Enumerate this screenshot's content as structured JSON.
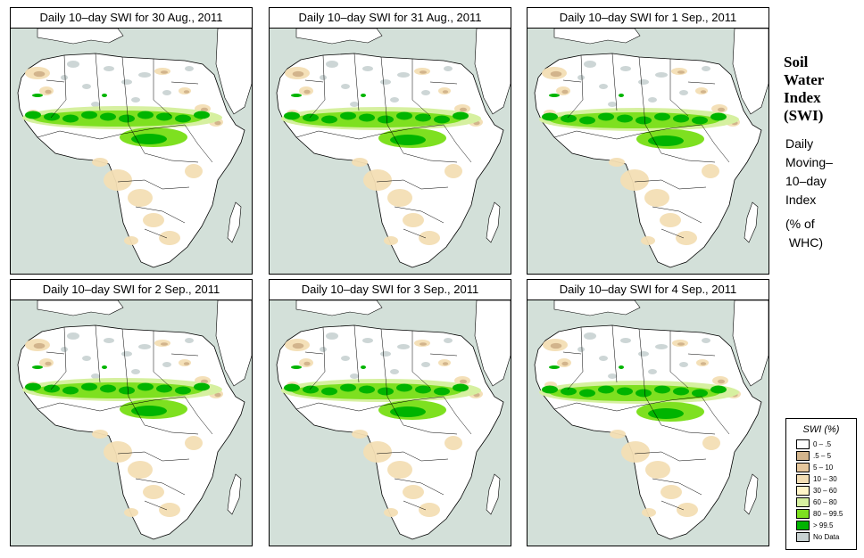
{
  "panels": [
    {
      "title": "Daily 10–day SWI for  30 Aug., 2011",
      "date": "30 Aug., 2011"
    },
    {
      "title": "Daily 10–day SWI for  31 Aug., 2011",
      "date": "31 Aug., 2011"
    },
    {
      "title": "Daily 10–day SWI for  1 Sep., 2011",
      "date": "1 Sep., 2011"
    },
    {
      "title": "Daily 10–day SWI for  2 Sep., 2011",
      "date": "2 Sep., 2011"
    },
    {
      "title": "Daily 10–day SWI for  3 Sep., 2011",
      "date": "3 Sep., 2011"
    },
    {
      "title": "Daily 10–day SWI for  4 Sep., 2011",
      "date": "4 Sep., 2011"
    }
  ],
  "side": {
    "title_lines": [
      "Soil",
      "Water",
      "Index",
      "(SWI)"
    ],
    "subtitle_lines": [
      "Daily",
      "Moving–",
      "10–day",
      "Index"
    ],
    "unit_lines": [
      "(% of",
      " WHC)"
    ]
  },
  "legend": {
    "title": "SWI (%)",
    "items": [
      {
        "label": "0 – .5",
        "color": "#ffffff"
      },
      {
        "label": ".5 – 5",
        "color": "#d2b48c"
      },
      {
        "label": "5 – 10",
        "color": "#e6c79c"
      },
      {
        "label": "10 – 30",
        "color": "#f3deb4"
      },
      {
        "label": "30 – 60",
        "color": "#fff5c8"
      },
      {
        "label": "60 – 80",
        "color": "#d6f0a0"
      },
      {
        "label": "80 – 99.5",
        "color": "#7ee020"
      },
      {
        "label": "> 99.5",
        "color": "#00b400"
      },
      {
        "label": "No Data",
        "color": "#c8d2d2"
      }
    ]
  },
  "colors": {
    "ocean": "#d3e0d9",
    "land": "#ffffff",
    "border": "#000000"
  }
}
